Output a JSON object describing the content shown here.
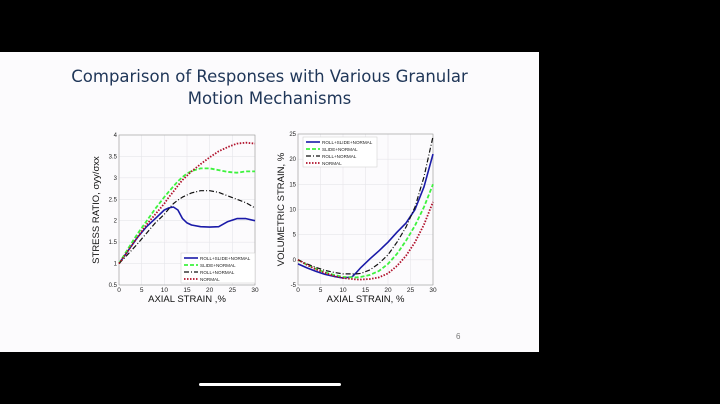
{
  "slide": {
    "title_line1": "Comparison of Responses with Various Granular",
    "title_line2": "Motion Mechanisms",
    "page_number": "6"
  },
  "colors": {
    "roll_slide_normal": "#1a1aa8",
    "slide_normal": "#3ef23e",
    "roll_normal": "#111111",
    "normal": "#b0102a",
    "title": "#1f3658"
  },
  "chart_data": [
    {
      "type": "line",
      "title": "",
      "xlabel": "AXIAL STRAIN ,%",
      "ylabel": "STRESS RATIO, σyy/σxx",
      "xlim": [
        0,
        30
      ],
      "ylim": [
        0.5,
        4
      ],
      "xticks": [
        0,
        5,
        10,
        15,
        20,
        25,
        30
      ],
      "yticks": [
        0.5,
        1,
        1.5,
        2,
        2.5,
        3,
        3.5,
        4
      ],
      "grid": true,
      "legend_position": "lower right",
      "x": [
        0,
        2,
        4,
        6,
        8,
        10,
        11,
        12,
        13,
        14,
        15,
        16,
        18,
        20,
        22,
        24,
        26,
        28,
        30
      ],
      "series": [
        {
          "name": "ROLL+SLIDE+NORMAL",
          "style": "solid",
          "values": [
            1.0,
            1.3,
            1.6,
            1.85,
            2.05,
            2.25,
            2.3,
            2.32,
            2.25,
            2.05,
            1.95,
            1.9,
            1.86,
            1.85,
            1.86,
            1.98,
            2.05,
            2.05,
            2.0
          ]
        },
        {
          "name": "SLIDE+NORMAL",
          "style": "dashed",
          "values": [
            1.0,
            1.35,
            1.68,
            1.98,
            2.28,
            2.55,
            2.68,
            2.8,
            2.92,
            3.02,
            3.1,
            3.16,
            3.22,
            3.22,
            3.18,
            3.14,
            3.12,
            3.15,
            3.15
          ]
        },
        {
          "name": "ROLL+NORMAL",
          "style": "dashdot",
          "values": [
            1.0,
            1.22,
            1.45,
            1.7,
            1.95,
            2.15,
            2.28,
            2.4,
            2.48,
            2.55,
            2.6,
            2.65,
            2.7,
            2.7,
            2.66,
            2.58,
            2.5,
            2.42,
            2.3
          ]
        },
        {
          "name": "NORMAL",
          "style": "dotted",
          "values": [
            1.0,
            1.3,
            1.6,
            1.9,
            2.15,
            2.4,
            2.55,
            2.68,
            2.82,
            2.95,
            3.05,
            3.15,
            3.32,
            3.48,
            3.62,
            3.72,
            3.8,
            3.82,
            3.8
          ]
        }
      ]
    },
    {
      "type": "line",
      "title": "",
      "xlabel": "AXIAL STRAIN, %",
      "ylabel": "VOLUMETRIC STRAIN, %",
      "xlim": [
        0,
        30
      ],
      "ylim": [
        -5,
        25
      ],
      "xticks": [
        0,
        5,
        10,
        15,
        20,
        25,
        30
      ],
      "yticks": [
        -5,
        0,
        5,
        10,
        15,
        20,
        25
      ],
      "grid": true,
      "legend_position": "upper left",
      "x": [
        0,
        2,
        4,
        6,
        8,
        10,
        12,
        13,
        14,
        16,
        18,
        20,
        22,
        24,
        26,
        28,
        30
      ],
      "series": [
        {
          "name": "ROLL+SLIDE+NORMAL",
          "style": "solid",
          "values": [
            -0.8,
            -1.6,
            -2.3,
            -2.9,
            -3.3,
            -3.6,
            -3.4,
            -2.5,
            -1.5,
            0.2,
            1.8,
            3.5,
            5.5,
            7.3,
            10.0,
            14.5,
            21.0
          ]
        },
        {
          "name": "SLIDE+NORMAL",
          "style": "dashed",
          "values": [
            0.0,
            -1.0,
            -1.8,
            -2.5,
            -3.0,
            -3.4,
            -3.5,
            -3.5,
            -3.4,
            -3.0,
            -2.2,
            -0.8,
            1.2,
            3.8,
            6.8,
            10.5,
            15.0
          ]
        },
        {
          "name": "ROLL+NORMAL",
          "style": "dashdot",
          "values": [
            0.0,
            -0.8,
            -1.5,
            -2.1,
            -2.5,
            -2.8,
            -2.8,
            -2.8,
            -2.7,
            -2.0,
            -0.7,
            1.0,
            3.5,
            6.5,
            10.5,
            16.5,
            24.5
          ]
        },
        {
          "name": "NORMAL",
          "style": "dotted",
          "values": [
            0.0,
            -1.0,
            -1.9,
            -2.6,
            -3.2,
            -3.6,
            -3.8,
            -3.9,
            -3.9,
            -3.8,
            -3.5,
            -2.7,
            -1.2,
            0.8,
            3.5,
            7.0,
            11.5
          ]
        }
      ]
    }
  ]
}
